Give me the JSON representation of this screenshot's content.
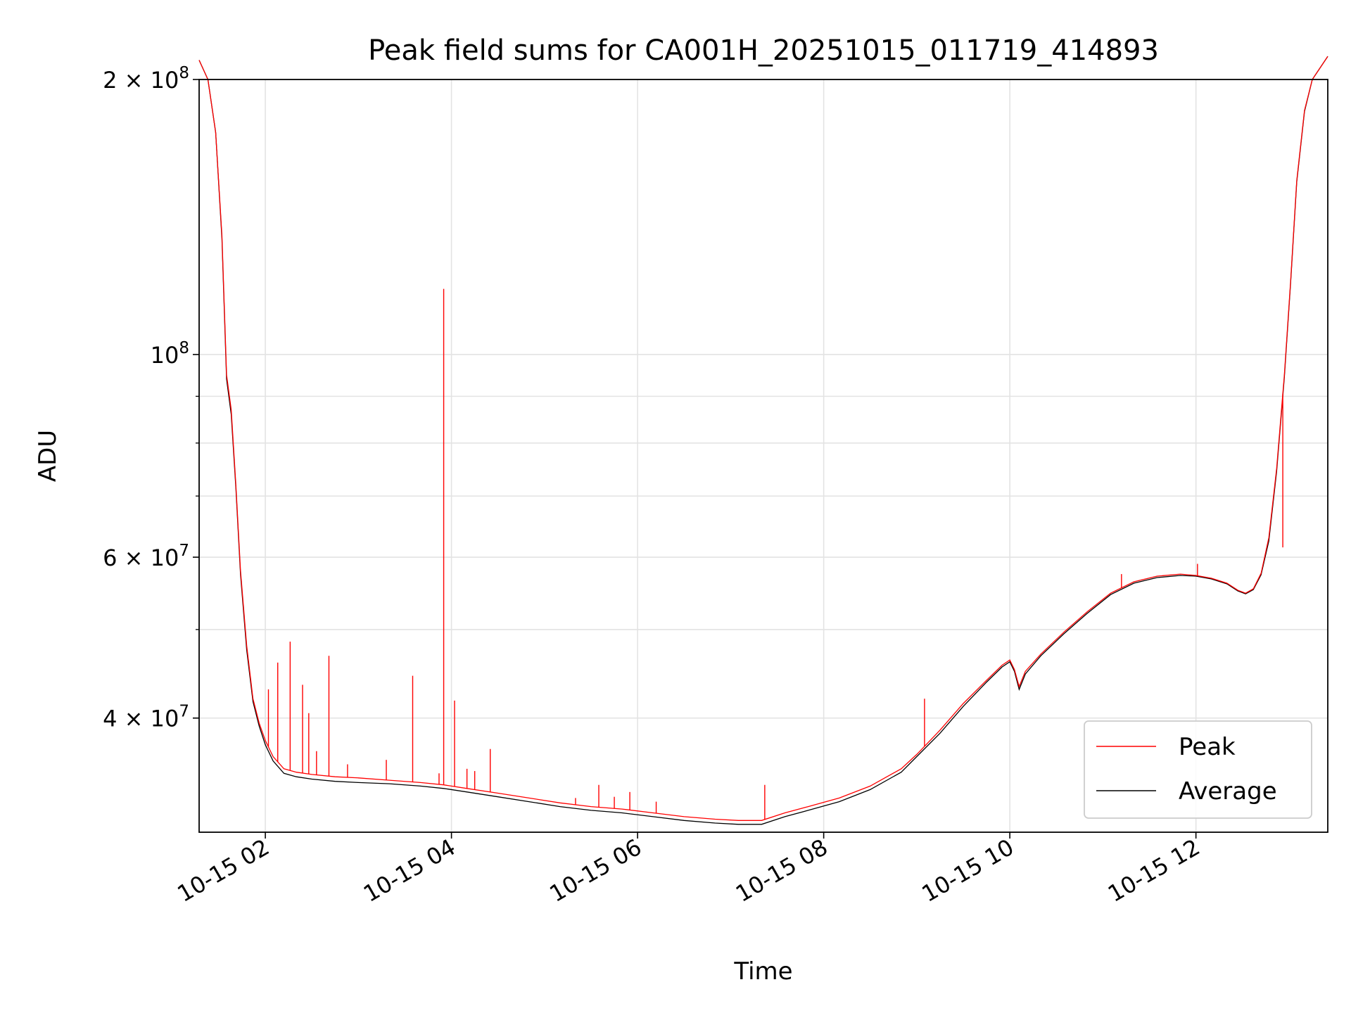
{
  "chart_data": {
    "type": "line",
    "title": "Peak field sums for CA001H_20251015_011719_414893",
    "xlabel": "Time",
    "ylabel": "ADU",
    "y_scale": "log",
    "ylim": [
      30000000,
      200000000
    ],
    "xlim": [
      "2025-10-15 01:17:19",
      "2025-10-15 13:25:00"
    ],
    "x_ticks": [
      "2025-10-15 02:00",
      "2025-10-15 04:00",
      "2025-10-15 06:00",
      "2025-10-15 08:00",
      "2025-10-15 10:00",
      "2025-10-15 12:00"
    ],
    "x_tick_labels": [
      "10-15 02",
      "10-15 04",
      "10-15 06",
      "10-15 08",
      "10-15 10",
      "10-15 12"
    ],
    "y_ticks": [
      {
        "value": 40000000,
        "mant": "4",
        "exp": "7"
      },
      {
        "value": 60000000,
        "mant": "6",
        "exp": "7"
      },
      {
        "value": 100000000,
        "mant": "",
        "exp": "8"
      },
      {
        "value": 200000000,
        "mant": "2",
        "exp": "8"
      }
    ],
    "y_minor_ticks": [
      50000000,
      70000000,
      80000000,
      90000000
    ],
    "grid": true,
    "legend": {
      "position": "lower right",
      "entries": [
        {
          "name": "Peak",
          "color": "#ff0000"
        },
        {
          "name": "Average",
          "color": "#000000"
        }
      ]
    },
    "series": [
      {
        "name": "Peak",
        "color": "#ff0000",
        "x": [
          "2025-10-15 01:17:19",
          "2025-10-15 01:23:00",
          "2025-10-15 01:28:00",
          "2025-10-15 01:32:00",
          "2025-10-15 01:35:00",
          "2025-10-15 01:38:00",
          "2025-10-15 01:41:00",
          "2025-10-15 01:44:00",
          "2025-10-15 01:48:00",
          "2025-10-15 01:52:00",
          "2025-10-15 01:56:00",
          "2025-10-15 02:00:00",
          "2025-10-15 02:05:00",
          "2025-10-15 02:12:00",
          "2025-10-15 02:20:00",
          "2025-10-15 02:30:00",
          "2025-10-15 02:45:00",
          "2025-10-15 03:00:00",
          "2025-10-15 03:20:00",
          "2025-10-15 03:40:00",
          "2025-10-15 03:55:00",
          "2025-10-15 04:10:00",
          "2025-10-15 04:30:00",
          "2025-10-15 04:50:00",
          "2025-10-15 05:10:00",
          "2025-10-15 05:30:00",
          "2025-10-15 05:50:00",
          "2025-10-15 06:10:00",
          "2025-10-15 06:30:00",
          "2025-10-15 06:50:00",
          "2025-10-15 07:05:00",
          "2025-10-15 07:20:00",
          "2025-10-15 07:35:00",
          "2025-10-15 07:50:00",
          "2025-10-15 08:10:00",
          "2025-10-15 08:30:00",
          "2025-10-15 08:50:00",
          "2025-10-15 09:00:00",
          "2025-10-15 09:15:00",
          "2025-10-15 09:30:00",
          "2025-10-15 09:45:00",
          "2025-10-15 09:55:00",
          "2025-10-15 10:00:00",
          "2025-10-15 10:03:00",
          "2025-10-15 10:06:00",
          "2025-10-15 10:10:00",
          "2025-10-15 10:20:00",
          "2025-10-15 10:35:00",
          "2025-10-15 10:50:00",
          "2025-10-15 11:05:00",
          "2025-10-15 11:20:00",
          "2025-10-15 11:35:00",
          "2025-10-15 11:50:00",
          "2025-10-15 12:00:00",
          "2025-10-15 12:10:00",
          "2025-10-15 12:20:00",
          "2025-10-15 12:27:00",
          "2025-10-15 12:32:00",
          "2025-10-15 12:37:00",
          "2025-10-15 12:42:00",
          "2025-10-15 12:47:00",
          "2025-10-15 12:52:00",
          "2025-10-15 12:57:00",
          "2025-10-15 13:01:00",
          "2025-10-15 13:05:00",
          "2025-10-15 13:10:00",
          "2025-10-15 13:15:00",
          "2025-10-15 13:25:00"
        ],
        "y": [
          210000000,
          200000000,
          175000000,
          135000000,
          95000000,
          87000000,
          72000000,
          58000000,
          48000000,
          42000000,
          39500000,
          37800000,
          36300000,
          35200000,
          34900000,
          34700000,
          34500000,
          34400000,
          34200000,
          34000000,
          33800000,
          33500000,
          33100000,
          32700000,
          32300000,
          32000000,
          31800000,
          31500000,
          31200000,
          31000000,
          30900000,
          30900000,
          31500000,
          32000000,
          32700000,
          33700000,
          35200000,
          36500000,
          38800000,
          41500000,
          44000000,
          45700000,
          46300000,
          45200000,
          43300000,
          45000000,
          47000000,
          49700000,
          52300000,
          54800000,
          56400000,
          57200000,
          57500000,
          57300000,
          56900000,
          56200000,
          55200000,
          54800000,
          55400000,
          57600000,
          63000000,
          75000000,
          95000000,
          120000000,
          155000000,
          185000000,
          200000000,
          212000000
        ]
      },
      {
        "name": "Average",
        "color": "#000000",
        "x": [
          "2025-10-15 01:17:19",
          "2025-10-15 01:23:00",
          "2025-10-15 01:28:00",
          "2025-10-15 01:32:00",
          "2025-10-15 01:35:00",
          "2025-10-15 01:38:00",
          "2025-10-15 01:41:00",
          "2025-10-15 01:44:00",
          "2025-10-15 01:48:00",
          "2025-10-15 01:52:00",
          "2025-10-15 01:56:00",
          "2025-10-15 02:00:00",
          "2025-10-15 02:05:00",
          "2025-10-15 02:12:00",
          "2025-10-15 02:20:00",
          "2025-10-15 02:30:00",
          "2025-10-15 02:45:00",
          "2025-10-15 03:00:00",
          "2025-10-15 03:20:00",
          "2025-10-15 03:40:00",
          "2025-10-15 03:55:00",
          "2025-10-15 04:10:00",
          "2025-10-15 04:30:00",
          "2025-10-15 04:50:00",
          "2025-10-15 05:10:00",
          "2025-10-15 05:30:00",
          "2025-10-15 05:50:00",
          "2025-10-15 06:10:00",
          "2025-10-15 06:30:00",
          "2025-10-15 06:50:00",
          "2025-10-15 07:05:00",
          "2025-10-15 07:20:00",
          "2025-10-15 07:35:00",
          "2025-10-15 07:50:00",
          "2025-10-15 08:10:00",
          "2025-10-15 08:30:00",
          "2025-10-15 08:50:00",
          "2025-10-15 09:00:00",
          "2025-10-15 09:15:00",
          "2025-10-15 09:30:00",
          "2025-10-15 09:45:00",
          "2025-10-15 09:55:00",
          "2025-10-15 10:00:00",
          "2025-10-15 10:03:00",
          "2025-10-15 10:06:00",
          "2025-10-15 10:10:00",
          "2025-10-15 10:20:00",
          "2025-10-15 10:35:00",
          "2025-10-15 10:50:00",
          "2025-10-15 11:05:00",
          "2025-10-15 11:20:00",
          "2025-10-15 11:35:00",
          "2025-10-15 11:50:00",
          "2025-10-15 12:00:00",
          "2025-10-15 12:10:00",
          "2025-10-15 12:20:00",
          "2025-10-15 12:27:00",
          "2025-10-15 12:32:00",
          "2025-10-15 12:37:00",
          "2025-10-15 12:42:00",
          "2025-10-15 12:47:00",
          "2025-10-15 12:52:00",
          "2025-10-15 12:57:00",
          "2025-10-15 13:01:00",
          "2025-10-15 13:05:00",
          "2025-10-15 13:10:00",
          "2025-10-15 13:15:00",
          "2025-10-15 13:25:00"
        ],
        "y": [
          210000000,
          200000000,
          175000000,
          134000000,
          94000000,
          86000000,
          71500000,
          57500000,
          47500000,
          41700000,
          39200000,
          37400000,
          35900000,
          34800000,
          34500000,
          34300000,
          34100000,
          34000000,
          33900000,
          33700000,
          33500000,
          33200000,
          32800000,
          32400000,
          32000000,
          31700000,
          31500000,
          31200000,
          30900000,
          30700000,
          30600000,
          30600000,
          31200000,
          31700000,
          32400000,
          33400000,
          34900000,
          36300000,
          38500000,
          41200000,
          43800000,
          45500000,
          46100000,
          45000000,
          43000000,
          44700000,
          46800000,
          49500000,
          52100000,
          54600000,
          56200000,
          57000000,
          57300000,
          57200000,
          56800000,
          56100000,
          55100000,
          54700000,
          55300000,
          57400000,
          62500000,
          74500000,
          94500000,
          119500000,
          154500000,
          184500000,
          200000000,
          212000000
        ]
      }
    ],
    "spikes": [
      {
        "series": "Peak",
        "x": "2025-10-15 02:02:00",
        "y": 43000000
      },
      {
        "series": "Peak",
        "x": "2025-10-15 02:08:00",
        "y": 46000000
      },
      {
        "series": "Peak",
        "x": "2025-10-15 02:16:00",
        "y": 48500000
      },
      {
        "series": "Peak",
        "x": "2025-10-15 02:24:00",
        "y": 43500000
      },
      {
        "series": "Peak",
        "x": "2025-10-15 02:28:00",
        "y": 40500000
      },
      {
        "series": "Peak",
        "x": "2025-10-15 02:33:00",
        "y": 36800000
      },
      {
        "series": "Peak",
        "x": "2025-10-15 02:41:00",
        "y": 46800000
      },
      {
        "series": "Peak",
        "x": "2025-10-15 02:53:00",
        "y": 35600000
      },
      {
        "series": "Peak",
        "x": "2025-10-15 03:18:00",
        "y": 36000000
      },
      {
        "series": "Peak",
        "x": "2025-10-15 03:35:00",
        "y": 44500000
      },
      {
        "series": "Peak",
        "x": "2025-10-15 03:52:00",
        "y": 34800000
      },
      {
        "series": "Peak",
        "x": "2025-10-15 03:55:00",
        "y": 118000000
      },
      {
        "series": "Peak",
        "x": "2025-10-15 04:02:00",
        "y": 41800000
      },
      {
        "series": "Peak",
        "x": "2025-10-15 04:10:00",
        "y": 35200000
      },
      {
        "series": "Peak",
        "x": "2025-10-15 04:15:00",
        "y": 35000000
      },
      {
        "series": "Peak",
        "x": "2025-10-15 04:25:00",
        "y": 37000000
      },
      {
        "series": "Peak",
        "x": "2025-10-15 05:20:00",
        "y": 32700000
      },
      {
        "series": "Peak",
        "x": "2025-10-15 05:35:00",
        "y": 33800000
      },
      {
        "series": "Peak",
        "x": "2025-10-15 05:45:00",
        "y": 32800000
      },
      {
        "series": "Peak",
        "x": "2025-10-15 05:55:00",
        "y": 33200000
      },
      {
        "series": "Peak",
        "x": "2025-10-15 06:12:00",
        "y": 32400000
      },
      {
        "series": "Peak",
        "x": "2025-10-15 07:22:00",
        "y": 33800000
      },
      {
        "series": "Peak",
        "x": "2025-10-15 09:05:00",
        "y": 42000000
      },
      {
        "series": "Peak",
        "x": "2025-10-15 11:12:00",
        "y": 57500000
      },
      {
        "series": "Peak",
        "x": "2025-10-15 12:01:00",
        "y": 59000000
      },
      {
        "series": "Peak",
        "x": "2025-10-15 12:56:00",
        "y": 61500000
      }
    ]
  }
}
